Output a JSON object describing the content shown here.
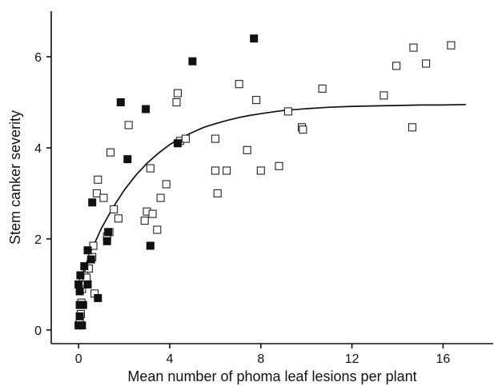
{
  "chart_data": {
    "type": "scatter",
    "xlabel": "Mean number of phoma leaf lesions per plant",
    "ylabel": "Stem canker severity",
    "xlim": [
      -1.2,
      18.2
    ],
    "ylim": [
      -0.3,
      7.0
    ],
    "xticks": [
      0,
      4,
      8,
      12,
      16
    ],
    "yticks": [
      0,
      2,
      4,
      6
    ],
    "xtick_labels": [
      "0",
      "4",
      "8",
      "12",
      "16"
    ],
    "ytick_labels": [
      "0",
      "2",
      "4",
      "6"
    ],
    "grid": false,
    "legend": "none",
    "series": [
      {
        "marker": "open-square",
        "color": "#ffffff",
        "points": [
          [
            0.05,
            0.15
          ],
          [
            0.1,
            0.35
          ],
          [
            0.12,
            0.6
          ],
          [
            0.15,
            0.9
          ],
          [
            0.2,
            1.05
          ],
          [
            0.25,
            1.2
          ],
          [
            0.35,
            1.15
          ],
          [
            0.45,
            1.35
          ],
          [
            0.6,
            1.6
          ],
          [
            0.65,
            1.85
          ],
          [
            0.7,
            0.8
          ],
          [
            0.8,
            3.0
          ],
          [
            0.85,
            3.3
          ],
          [
            1.1,
            2.9
          ],
          [
            1.25,
            2.05
          ],
          [
            1.35,
            2.15
          ],
          [
            1.4,
            3.9
          ],
          [
            1.55,
            2.65
          ],
          [
            1.75,
            2.45
          ],
          [
            2.2,
            4.5
          ],
          [
            2.9,
            2.4
          ],
          [
            3.0,
            2.6
          ],
          [
            3.15,
            3.55
          ],
          [
            3.25,
            2.55
          ],
          [
            3.45,
            2.2
          ],
          [
            3.6,
            2.9
          ],
          [
            3.85,
            3.2
          ],
          [
            4.35,
            5.2
          ],
          [
            4.3,
            5.0
          ],
          [
            4.45,
            4.15
          ],
          [
            4.7,
            4.2
          ],
          [
            6.0,
            4.2
          ],
          [
            6.0,
            3.5
          ],
          [
            6.1,
            3.0
          ],
          [
            6.5,
            3.5
          ],
          [
            7.05,
            5.4
          ],
          [
            7.4,
            3.95
          ],
          [
            7.8,
            5.05
          ],
          [
            8.0,
            3.5
          ],
          [
            8.8,
            3.6
          ],
          [
            9.2,
            4.8
          ],
          [
            9.8,
            4.45
          ],
          [
            9.85,
            4.4
          ],
          [
            10.7,
            5.3
          ],
          [
            13.4,
            5.15
          ],
          [
            13.95,
            5.8
          ],
          [
            14.65,
            4.45
          ],
          [
            14.7,
            6.2
          ],
          [
            15.25,
            5.85
          ],
          [
            16.35,
            6.25
          ]
        ]
      },
      {
        "marker": "filled-square",
        "color": "#111111",
        "points": [
          [
            0.0,
            0.1
          ],
          [
            0.05,
            0.3
          ],
          [
            0.05,
            0.55
          ],
          [
            0.05,
            0.85
          ],
          [
            0.0,
            1.0
          ],
          [
            0.08,
            1.2
          ],
          [
            0.15,
            0.1
          ],
          [
            0.2,
            0.55
          ],
          [
            0.25,
            1.4
          ],
          [
            0.4,
            1.75
          ],
          [
            0.4,
            1.0
          ],
          [
            0.55,
            1.55
          ],
          [
            0.6,
            2.8
          ],
          [
            0.85,
            0.7
          ],
          [
            1.25,
            1.95
          ],
          [
            1.3,
            2.15
          ],
          [
            1.85,
            5.0
          ],
          [
            2.15,
            3.75
          ],
          [
            2.95,
            4.85
          ],
          [
            3.15,
            1.85
          ],
          [
            4.35,
            4.1
          ],
          [
            5.0,
            5.9
          ],
          [
            7.7,
            6.4
          ]
        ]
      }
    ],
    "fit_curve": {
      "form": "y = 4.95 * (1 - exp(-0.375 * x)) + 1.0 * exp(-0.375 * x)",
      "x": [
        0.0,
        0.5,
        1.0,
        1.5,
        2.0,
        2.5,
        3.0,
        3.5,
        4.0,
        4.5,
        5.0,
        5.5,
        6.0,
        6.5,
        7.0,
        7.5,
        8.0,
        9.0,
        10.0,
        11.0,
        12.0,
        13.0,
        14.0,
        15.0,
        16.0,
        17.0
      ],
      "y": [
        1.0,
        1.68,
        2.23,
        2.68,
        3.07,
        3.39,
        3.66,
        3.88,
        4.07,
        4.22,
        4.34,
        4.45,
        4.53,
        4.6,
        4.66,
        4.71,
        4.75,
        4.82,
        4.86,
        4.89,
        4.91,
        4.92,
        4.93,
        4.94,
        4.94,
        4.95
      ]
    }
  }
}
